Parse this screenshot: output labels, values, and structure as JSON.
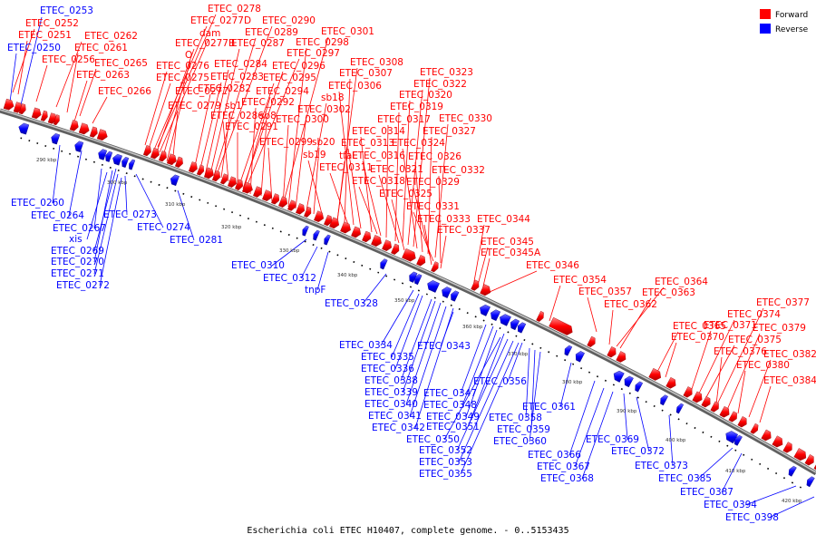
{
  "colors": {
    "forward": "#ff0000",
    "reverse": "#0000ff",
    "backbone": "#808080",
    "text": "#000000"
  },
  "legend": [
    {
      "key": "forward",
      "label": "Forward"
    },
    {
      "key": "reverse",
      "label": "Reverse"
    }
  ],
  "caption": "Escherichia coli ETEC H10407, complete genome. - 0..5153435",
  "ticks": [
    "290 kbp",
    "300 kbp",
    "310 kbp",
    "320 kbp",
    "330 kbp",
    "340 kbp",
    "350 kbp",
    "360 kbp",
    "370 kbp",
    "380 kbp",
    "390 kbp",
    "400 kbp",
    "410 kbp",
    "420 kbp"
  ],
  "forward_labels": [
    "ETEC_0252",
    "ETEC_0251",
    "ETEC_0256",
    "ETEC_0262",
    "ETEC_0261",
    "ETEC_0265",
    "ETEC_0263",
    "ETEC_0266",
    "ETEC_0278",
    "ETEC_0277D",
    "dam",
    "ETEC_0277B",
    "O",
    "ETEC_0276",
    "ETEC_0275",
    "ETEC_0277",
    "ETEC_0279",
    "ETEC_0290",
    "ETEC_0289",
    "ETEC_0287",
    "ETEC_0284",
    "ETEC_0283",
    "ETEC_0282",
    "sb1",
    "ETEC_0286",
    "ETEC_0291",
    "ETEC_0297",
    "ETEC_0296",
    "ETEC_0295",
    "ETEC_0294",
    "ETEC_0292",
    "sb8",
    "ETEC_0299",
    "ETEC_0300",
    "ETEC_0301",
    "ETEC_0298",
    "ETEC_0302",
    "sb18",
    "sb20",
    "sb19",
    "ETEC_0308",
    "ETEC_0307",
    "ETEC_0306",
    "tfaE",
    "ETEC_0311",
    "ETEC_0313",
    "ETEC_0314",
    "ETEC_0316",
    "ETEC_0318",
    "ETEC_0317",
    "ETEC_0321",
    "ETEC_0319",
    "ETEC_0320",
    "ETEC_0322",
    "ETEC_0323",
    "ETEC_0324",
    "ETEC_0325",
    "ETEC_0326",
    "ETEC_0327",
    "ETEC_0329",
    "ETEC_0330",
    "ETEC_0331",
    "ETEC_0332",
    "ETEC_0333",
    "ETEC_0337",
    "ETEC_0344",
    "ETEC_0345",
    "ETEC_0345A",
    "ETEC_0346",
    "ETEC_0354",
    "ETEC_0357",
    "ETEC_0362",
    "ETEC_0363",
    "ETEC_0364",
    "ETEC_0365",
    "ETEC_0370",
    "ETEC_0371",
    "ETEC_0374",
    "ETEC_0375",
    "ETEC_0376",
    "ETEC_0377",
    "ETEC_0379",
    "ETEC_0380",
    "ETEC_0382",
    "ETEC_0384"
  ],
  "reverse_labels": [
    "ETEC_0253",
    "ETEC_0250",
    "ETEC_0260",
    "ETEC_0264",
    "ETEC_0267",
    "xis",
    "ETEC_0269",
    "ETEC_0270",
    "ETEC_0271",
    "ETEC_0272",
    "ETEC_0273",
    "ETEC_0274",
    "ETEC_0281",
    "ETEC_0310",
    "ETEC_0312",
    "tnpF",
    "ETEC_0328",
    "ETEC_0334",
    "ETEC_0335",
    "ETEC_0336",
    "ETEC_0338",
    "ETEC_0339",
    "ETEC_0340",
    "ETEC_0341",
    "ETEC_0342",
    "ETEC_0343",
    "ETEC_0347",
    "ETEC_0348",
    "ETEC_0349",
    "ETEC_0351",
    "ETEC_0350",
    "ETEC_0352",
    "ETEC_0353",
    "ETEC_0355",
    "ETEC_0356",
    "ETEC_0358",
    "ETEC_0359",
    "ETEC_0360",
    "ETEC_0361",
    "ETEC_0366",
    "ETEC_0367",
    "ETEC_0368",
    "ETEC_0369",
    "ETEC_0372",
    "ETEC_0373",
    "ETEC_0385",
    "ETEC_0387",
    "ETEC_0394",
    "ETEC_0398"
  ]
}
